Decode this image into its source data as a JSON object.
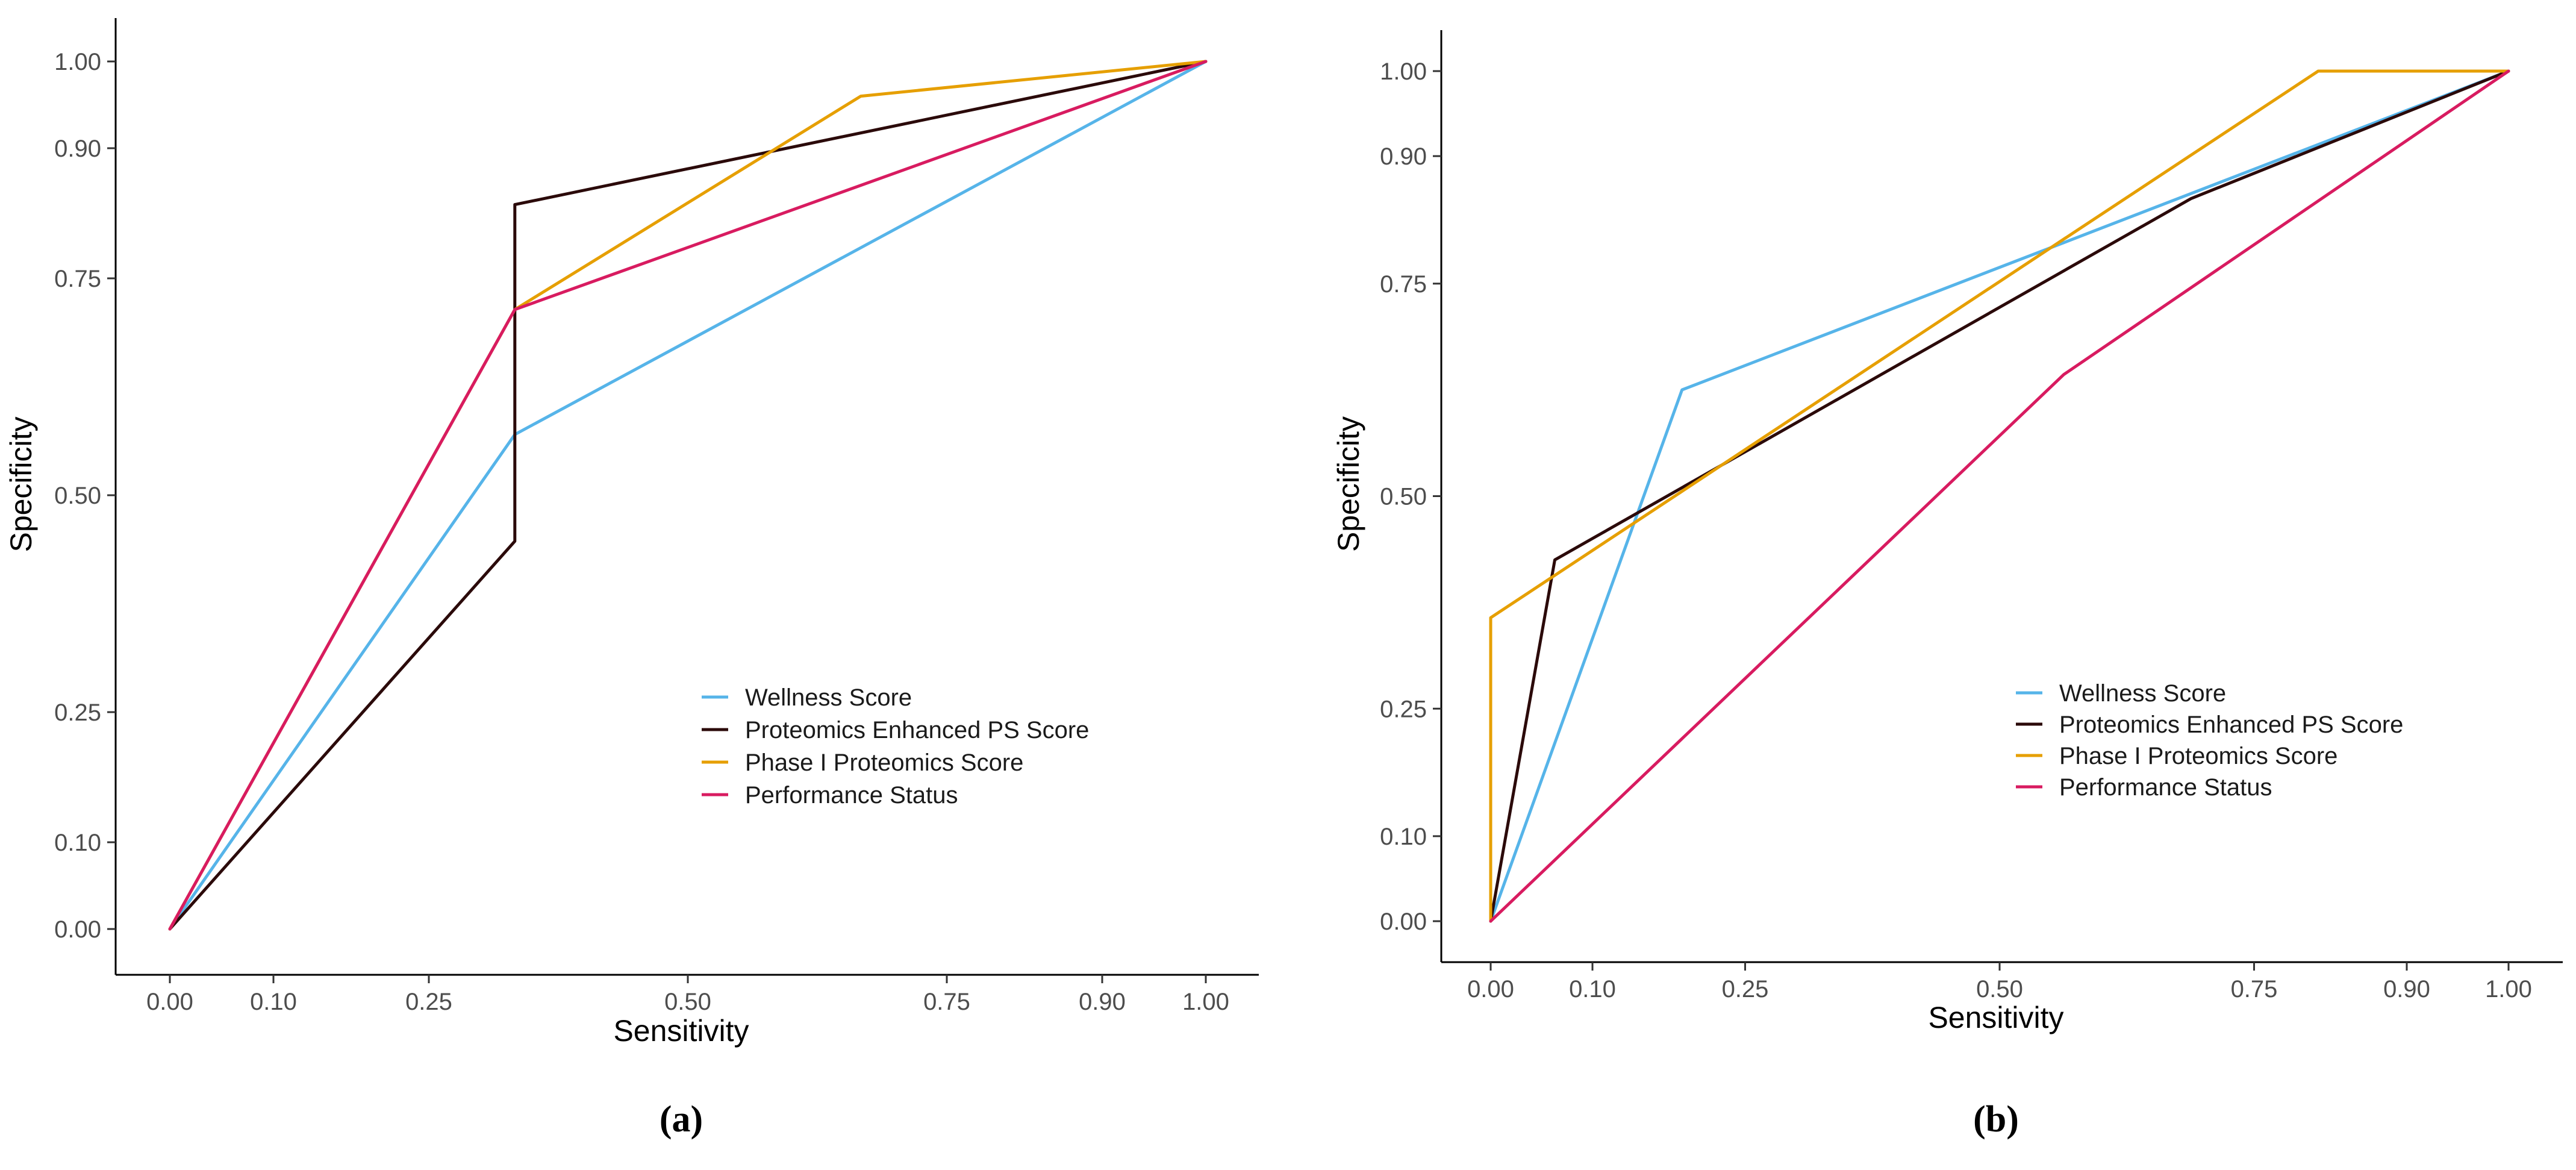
{
  "chart_data": [
    {
      "type": "line",
      "panel_label": "(a)",
      "xlabel": "Sensitivity",
      "ylabel": "Specificity",
      "xlim": [
        0,
        1
      ],
      "ylim": [
        0,
        1
      ],
      "xticks": [
        0.0,
        0.1,
        0.25,
        0.5,
        0.75,
        0.9,
        1.0
      ],
      "xtick_labels": [
        "0.00",
        "0.10",
        "0.25",
        "0.50",
        "0.75",
        "0.90",
        "1.00"
      ],
      "yticks": [
        0.0,
        0.1,
        0.25,
        0.5,
        0.75,
        0.9,
        1.0
      ],
      "ytick_labels": [
        "0.00",
        "0.10",
        "0.25",
        "0.50",
        "0.75",
        "0.90",
        "1.00"
      ],
      "legend_position": "bottom-right",
      "series": [
        {
          "name": "Wellness Score",
          "color": "#56B4E9",
          "points": [
            [
              0,
              0
            ],
            [
              0.333,
              0.57
            ],
            [
              1,
              1
            ]
          ]
        },
        {
          "name": "Proteomics Enhanced PS Score",
          "color": "#2B0A0A",
          "points": [
            [
              0,
              0
            ],
            [
              0.333,
              0.447
            ],
            [
              0.333,
              0.835
            ],
            [
              1,
              1
            ]
          ]
        },
        {
          "name": "Phase I Proteomics Score",
          "color": "#E69F00",
          "points": [
            [
              0,
              0
            ],
            [
              0.333,
              0.714
            ],
            [
              0.667,
              0.96
            ],
            [
              1,
              1
            ]
          ]
        },
        {
          "name": "Performance Status",
          "color": "#D81B60",
          "points": [
            [
              0,
              0
            ],
            [
              0.333,
              0.714
            ],
            [
              1,
              1
            ]
          ]
        }
      ]
    },
    {
      "type": "line",
      "panel_label": "(b)",
      "xlabel": "Sensitivity",
      "ylabel": "Specificity",
      "xlim": [
        0,
        1
      ],
      "ylim": [
        0,
        1
      ],
      "xticks": [
        0.0,
        0.1,
        0.25,
        0.5,
        0.75,
        0.9,
        1.0
      ],
      "xtick_labels": [
        "0.00",
        "0.10",
        "0.25",
        "0.50",
        "0.75",
        "0.90",
        "1.00"
      ],
      "yticks": [
        0.0,
        0.1,
        0.25,
        0.5,
        0.75,
        0.9,
        1.0
      ],
      "ytick_labels": [
        "0.00",
        "0.10",
        "0.25",
        "0.50",
        "0.75",
        "0.90",
        "1.00"
      ],
      "legend_position": "bottom-right",
      "series": [
        {
          "name": "Wellness Score",
          "color": "#56B4E9",
          "points": [
            [
              0,
              0
            ],
            [
              0.188,
              0.625
            ],
            [
              1,
              1
            ]
          ]
        },
        {
          "name": "Proteomics Enhanced PS Score",
          "color": "#2B0A0A",
          "points": [
            [
              0,
              0
            ],
            [
              0.063,
              0.425
            ],
            [
              0.688,
              0.85
            ],
            [
              1,
              1
            ]
          ]
        },
        {
          "name": "Phase I Proteomics Score",
          "color": "#E69F00",
          "points": [
            [
              0,
              0
            ],
            [
              0,
              0.357
            ],
            [
              0.813,
              1
            ],
            [
              1,
              1
            ]
          ]
        },
        {
          "name": "Performance Status",
          "color": "#D81B60",
          "points": [
            [
              0,
              0
            ],
            [
              0.563,
              0.643
            ],
            [
              1,
              1
            ]
          ]
        }
      ]
    }
  ]
}
